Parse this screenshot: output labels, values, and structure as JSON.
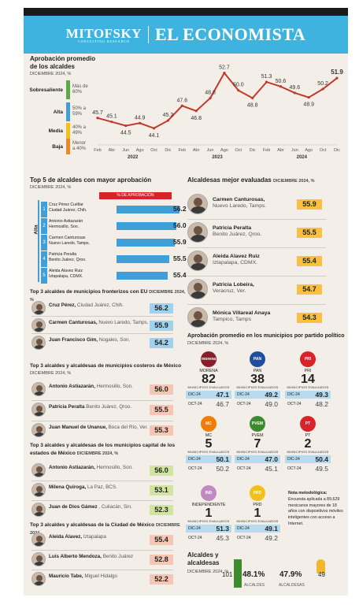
{
  "header": {
    "brand_left": "MITOFSKY",
    "brand_left_sub": "CONSULTING RESEARCH",
    "brand_right": "EL ECONOMISTA"
  },
  "approval_chart": {
    "title": "Aprobación promedio de los alcaldes",
    "subtitle": "DICIEMBRE 2024, %",
    "legend": [
      {
        "label": "Sobresaliente",
        "range": "Más de 60%",
        "color": "#5aa84b"
      },
      {
        "label": "Alta",
        "range": "50% a 59%",
        "color": "#3f9fd6"
      },
      {
        "label": "Media",
        "range": "40% a 49%",
        "color": "#f2c01c"
      },
      {
        "label": "Baja",
        "range": "Menor a 40%",
        "color": "#e8892e"
      }
    ]
  },
  "chart_data": {
    "type": "line",
    "x": [
      "Feb 2022",
      "Abr 2022",
      "Jun 2022",
      "Ago 2022",
      "Oct 2022",
      "Dic 2022",
      "Feb 2023",
      "Abr 2023",
      "Jun 2023",
      "Ago 2023",
      "Oct 2023",
      "Dic 2023",
      "Feb 2024",
      "Abr 2024",
      "Jun 2024",
      "Ago 2024",
      "Oct 2024",
      "Dic 2024"
    ],
    "tick_labels": [
      "Feb",
      "Abr",
      "Jun",
      "Ago",
      "Oct",
      "Dic",
      "Feb",
      "Abr",
      "Jun",
      "Ago",
      "Oct",
      "Dic",
      "Feb",
      "Abr",
      "Jun",
      "Ago",
      "Oct",
      "Dic"
    ],
    "year_labels": [
      "2022",
      "2023",
      "2024"
    ],
    "series": [
      {
        "values": [
          45.7,
          45.1,
          44.5,
          44.9,
          44.1,
          45.3,
          47.6,
          46.8,
          48.8,
          52.7,
          50.0,
          48.8,
          51.3,
          50.6,
          49.6,
          48.9,
          50.2,
          51.9
        ]
      }
    ],
    "value_labels": [
      "45.7",
      "45.1",
      "44.5",
      "44.9",
      "44.1",
      "45.3",
      "47.6",
      "46.8",
      "48.8",
      "52.7",
      "50.0",
      "48.8",
      "51.3",
      "50.6",
      "49.6",
      "48.9",
      "50.2",
      "51.9"
    ],
    "ylim": [
      42,
      54
    ],
    "color": "#c0392b"
  },
  "top5": {
    "title": "Top 5 de alcaldes con mayor aprobación",
    "subtitle": "DICIEMBRE 2024, %",
    "column_label": "% DE APROBACIÓN",
    "group_label": "Alta",
    "rows": [
      {
        "rank": "1",
        "name": "Cruz Pérez Cuéllar",
        "city": "Ciudad Juárez, Chih.",
        "value": 56.2,
        "value_label": "56.2"
      },
      {
        "rank": "2",
        "name": "Antonio Astiazarán",
        "city": "Hermosillo, Son.",
        "value": 56.0,
        "value_label": "56.0"
      },
      {
        "rank": "3",
        "name": "Carmen Canturosas",
        "city": "Nuevo Laredo, Tamps.",
        "value": 55.9,
        "value_label": "55.9"
      },
      {
        "rank": "4",
        "name": "Patricia Peralta",
        "city": "Benito Juárez, Qroo.",
        "value": 55.5,
        "value_label": "55.5"
      },
      {
        "rank": "5",
        "name": "Aleida Alavez Ruiz",
        "city": "Iztapalapa, CDMX.",
        "value": 55.4,
        "value_label": "55.4"
      }
    ]
  },
  "frontier": {
    "title": "Top 3 alcaldes de municipios fronterizos con EU",
    "subtitle": "DICIEMBRE 2024, %",
    "rows": [
      {
        "name": "Cruz Pérez,",
        "place": "Ciudad Juárez, Chih.",
        "value": "56.2"
      },
      {
        "name": "Carmen Canturosas,",
        "place": "Nuevo Laredo, Tamps.",
        "value": "55.9"
      },
      {
        "name": "Juan Francisco Gim,",
        "place": "Nogales, Son.",
        "value": "54.2"
      }
    ]
  },
  "coastal": {
    "title": "Top 3 alcaldes y alcaldesas de municipios costeros de México",
    "subtitle": "DICIEMBRE 2024, %",
    "rows": [
      {
        "name": "Antonio Astiazarán,",
        "place": "Hermosillo, Son.",
        "value": "56.0"
      },
      {
        "name": "Patricia Peralta",
        "place": "Benito Juárez, Qroo.",
        "value": "55.5"
      },
      {
        "name": "Juan Manuel de Unanue,",
        "place": "Boca del Río, Ver.",
        "value": "55.3"
      }
    ]
  },
  "capitals": {
    "title": "Top 3 alcaldes y alcaldesas de los municipios capital de los estados de México",
    "subtitle": "DICIEMBRE 2024, %",
    "rows": [
      {
        "name": "Antonio Astiazarán,",
        "place": "Hermosillo, Son.",
        "value": "56.0"
      },
      {
        "name": "Milena Quiroga,",
        "place": "La Paz, BCS.",
        "value": "53.1"
      },
      {
        "name": "Juan de Dios Gámez",
        "place": ", Culiacán, Sin.",
        "value": "52.3"
      }
    ]
  },
  "cdmx": {
    "title": "Top 3 alcaldes y alcaldesas de la Ciudad de México",
    "subtitle": "DICIEMBRE 2024",
    "rows": [
      {
        "name": "Aleida Alavez,",
        "place": "Iztapalapa",
        "value": "55.4"
      },
      {
        "name": "Luis Alberto Mendoza,",
        "place": "Benito Juárez",
        "value": "52.8"
      },
      {
        "name": "Mauricio Tabe,",
        "place": "Miguel Hidalgo",
        "value": "52.2"
      }
    ]
  },
  "women": {
    "title": "Alcaldesas mejor evaluadas",
    "subtitle": "DICIEMBRE 2024, %",
    "rows": [
      {
        "name": "Carmen Canturosas,",
        "place": "Nuevo Laredo, Tamps.",
        "value": "55.9"
      },
      {
        "name": "Patricia Peralta",
        "place": "Benito Juárez, Qroo.",
        "value": "55.5"
      },
      {
        "name": "Aleida Alavez Ruiz",
        "place": "Iztapalapa, CDMX.",
        "value": "55.4"
      },
      {
        "name": "Patricia Lobeira,",
        "place": "Veracruz, Ver.",
        "value": "54.7"
      },
      {
        "name": "Mónica Villareal Anaya",
        "place": "Tampico, Tamps",
        "value": "54.3"
      }
    ]
  },
  "parties": {
    "title": "Aprobación promedio en los municipios por partido político",
    "subtitle": "DICIEMBRE 2024, %",
    "evaluated_label": "MUNICIPIOS EVALUADOS",
    "dic_label": "DIC-24",
    "oct_label": "OCT-24",
    "items": [
      {
        "name": "MORENA",
        "logo": "morena",
        "color": "#8b1e2d",
        "count": "82",
        "dic": "47.1",
        "oct": "46.7"
      },
      {
        "name": "PAN",
        "logo": "PAN",
        "color": "#1f4e9c",
        "count": "38",
        "dic": "49.2",
        "oct": "49.0"
      },
      {
        "name": "PRI",
        "logo": "PRI",
        "color": "#d8232a",
        "count": "14",
        "dic": "49.3",
        "oct": "48.2"
      },
      {
        "name": "MC",
        "logo": "MC",
        "color": "#f07d00",
        "count": "5",
        "dic": "50.1",
        "oct": "50.2"
      },
      {
        "name": "PVEM",
        "logo": "PVEM",
        "color": "#3d8b2f",
        "count": "7",
        "dic": "47.0",
        "oct": "45.1"
      },
      {
        "name": "PT",
        "logo": "PT",
        "color": "#d8232a",
        "count": "2",
        "dic": "50.4",
        "oct": "49.5"
      },
      {
        "name": "INDEPENDIENTE",
        "logo": "IND",
        "color": "#c18ac1",
        "count": "1",
        "dic": "51.3",
        "oct": "45.3"
      },
      {
        "name": "PRD",
        "logo": "PRD",
        "color": "#f2c01c",
        "count": "1",
        "dic": "49.1",
        "oct": "49.2"
      }
    ]
  },
  "note": {
    "title": "Nota metodológica:",
    "body": "Encuesta aplicada a 89,629 mexicanos mayores de 18 años con dispositivos móviles inteligentes con acceso a Internet."
  },
  "gender": {
    "title": "Alcaldes y alcaldesas",
    "subtitle": "DICIEMBRE 2024, %",
    "men_count": "101",
    "men_pct": "48.1%",
    "men_label": "ALCALDES",
    "women_pct": "47.9%",
    "women_label": "ALCALDESAS",
    "women_count": "49"
  }
}
